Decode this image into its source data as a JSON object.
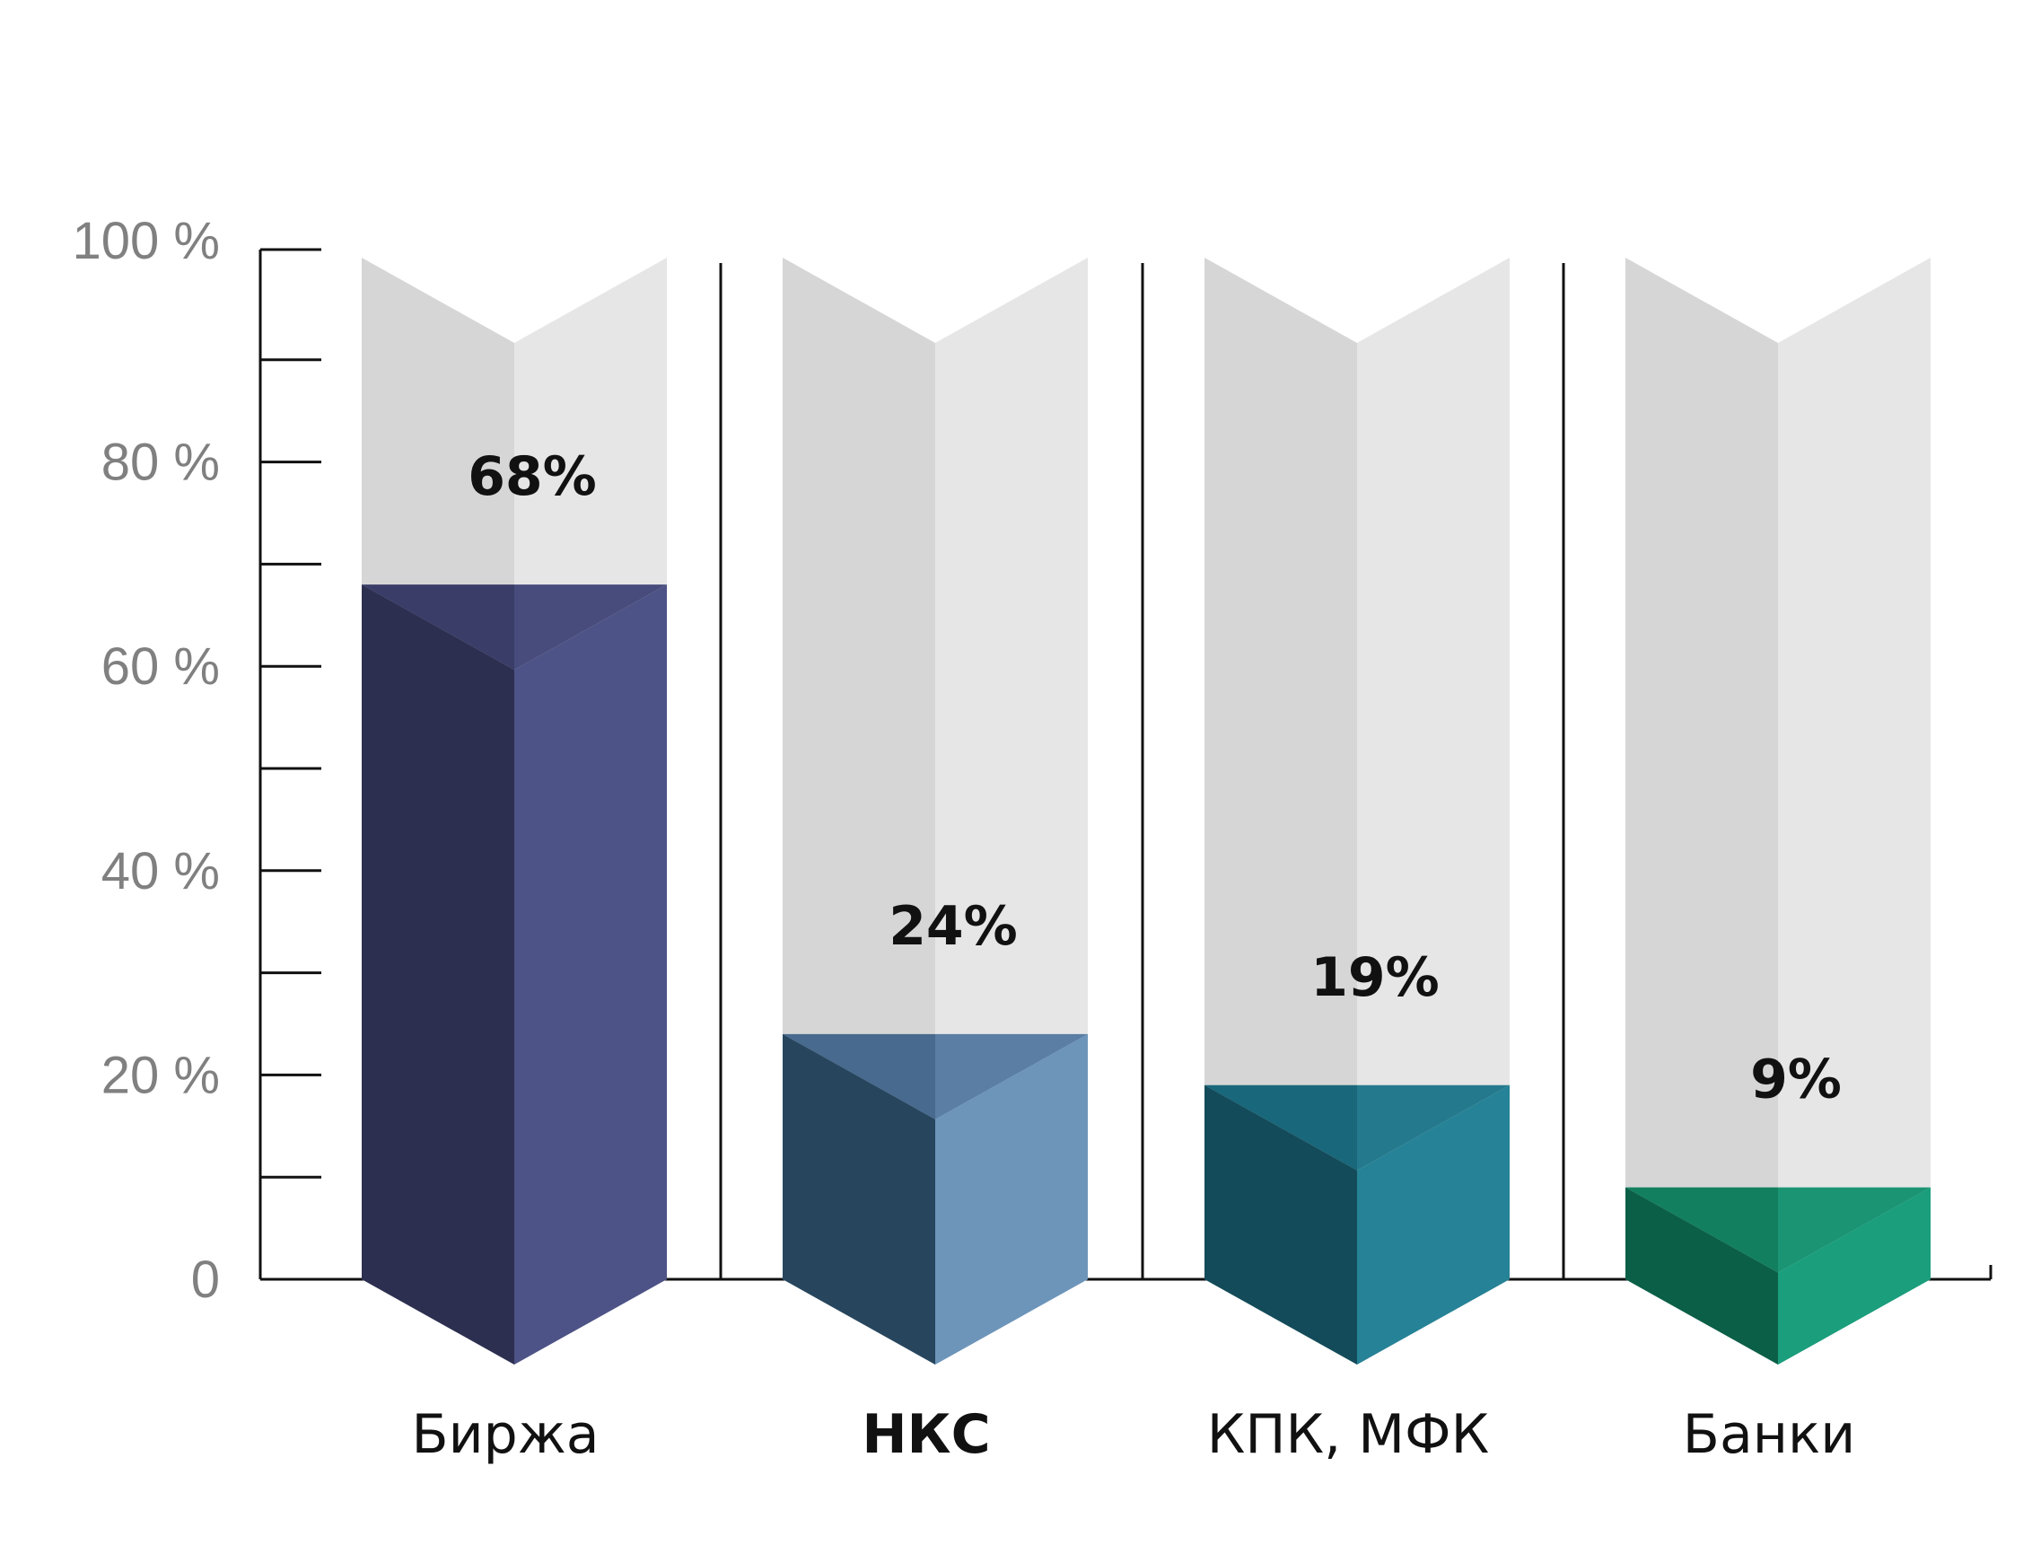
{
  "chart_data": {
    "type": "bar",
    "categories": [
      "Биржа",
      "НКС",
      "КПК, МФК",
      "Банки"
    ],
    "values": [
      68,
      24,
      19,
      9
    ],
    "value_labels": [
      "68%",
      "24%",
      "19%",
      "9%"
    ],
    "y_ticks": [
      {
        "value": 0,
        "label": "0"
      },
      {
        "value": 20,
        "label": "20 %"
      },
      {
        "value": 40,
        "label": "40 %"
      },
      {
        "value": 60,
        "label": "60 %"
      },
      {
        "value": 80,
        "label": "80 %"
      },
      {
        "value": 100,
        "label": "100 %"
      }
    ],
    "ylim": [
      0,
      100
    ],
    "highlighted_category": "НКС",
    "colors": {
      "empty_left": "#d6d6d6",
      "empty_right": "#e6e6e6",
      "tick_label": "#808080",
      "highlight_label": "#27475f",
      "series": [
        {
          "left": "#2c2f50",
          "right": "#4d5386",
          "top_left": "#3a3d68",
          "top_right": "#474c7c"
        },
        {
          "left": "#27465e",
          "right": "#6d95ba",
          "top_left": "#486a8e",
          "top_right": "#5a7ea4"
        },
        {
          "left": "#134b5a",
          "right": "#268296",
          "top_left": "#19677a",
          "top_right": "#247a8c"
        },
        {
          "left": "#0b5f47",
          "right": "#1a9e7c",
          "top_left": "#12805f",
          "top_right": "#1b9474"
        }
      ]
    }
  }
}
